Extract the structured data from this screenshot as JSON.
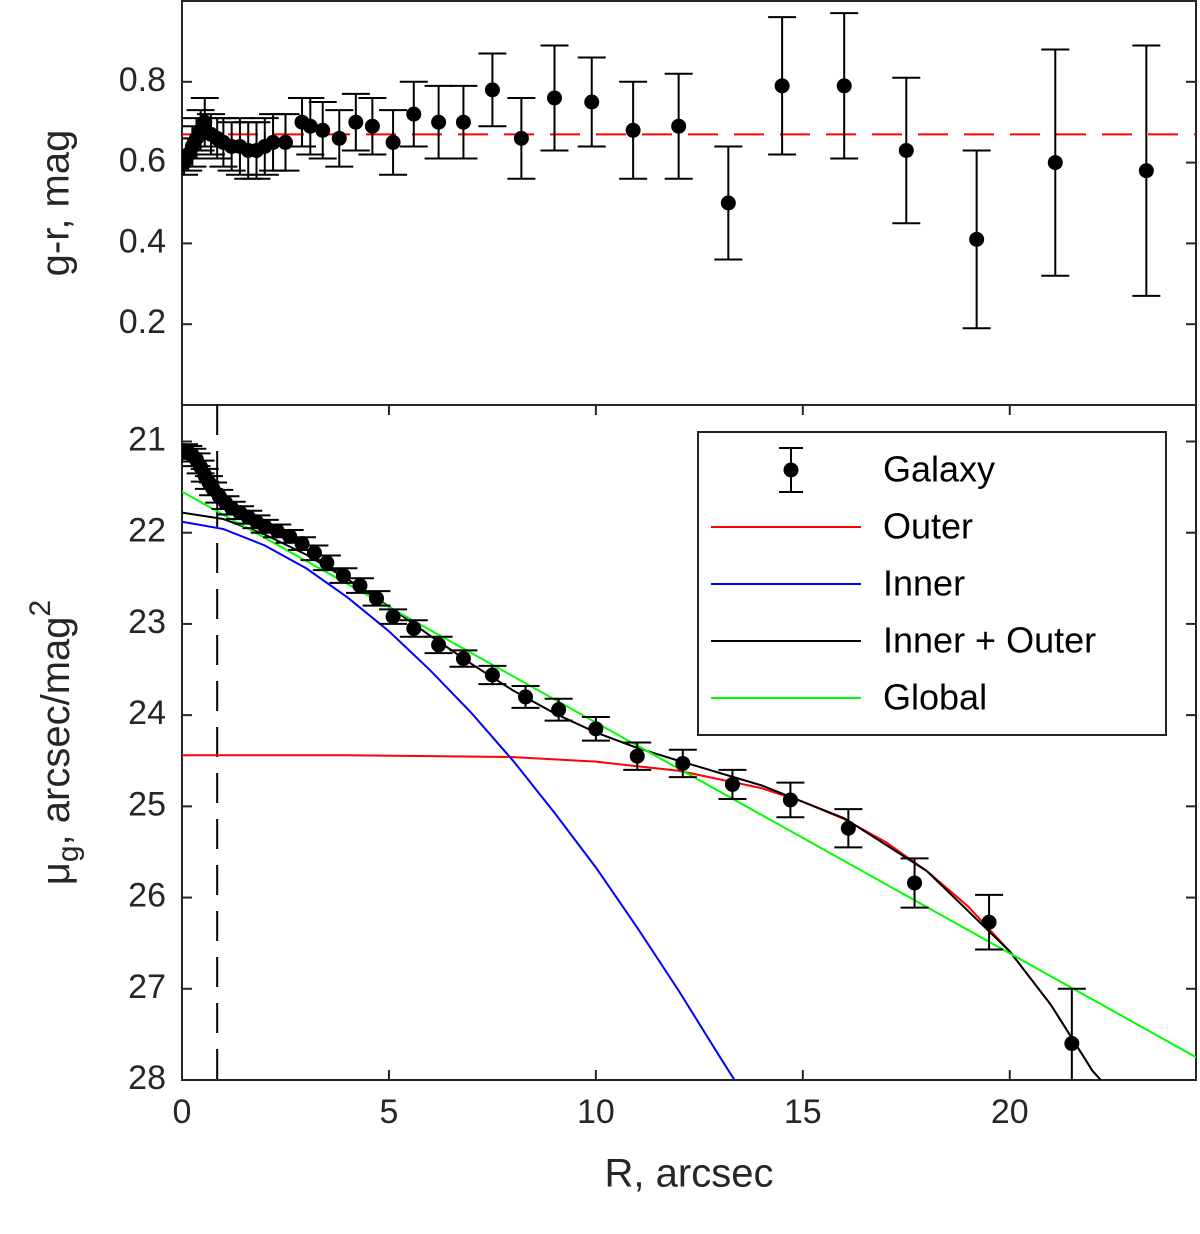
{
  "chart_data": [
    {
      "type": "scatter",
      "ylabel": "g-r, mag",
      "xlim": [
        0,
        24.5
      ],
      "ylim": [
        0,
        1
      ],
      "yticks": [
        0.2,
        0.4,
        0.6,
        0.8
      ],
      "hline": {
        "y": 0.67,
        "color": "#ff0000",
        "style": "dashed"
      },
      "series": [
        {
          "kind": "errorbar",
          "color": "#000000",
          "x": [
            0.05,
            0.15,
            0.25,
            0.35,
            0.45,
            0.55,
            0.7,
            0.85,
            1.0,
            1.2,
            1.4,
            1.6,
            1.8,
            2.0,
            2.2,
            2.5,
            2.9,
            3.1,
            3.4,
            3.8,
            4.2,
            4.6,
            5.1,
            5.6,
            6.2,
            6.8,
            7.5,
            8.2,
            9.0,
            9.9,
            10.9,
            12.0,
            13.2,
            14.5,
            16.0,
            17.5,
            19.2,
            21.1,
            23.3
          ],
          "values": [
            0.6,
            0.62,
            0.64,
            0.66,
            0.68,
            0.7,
            0.67,
            0.66,
            0.65,
            0.64,
            0.64,
            0.63,
            0.63,
            0.64,
            0.65,
            0.65,
            0.7,
            0.69,
            0.68,
            0.66,
            0.7,
            0.69,
            0.65,
            0.72,
            0.7,
            0.7,
            0.78,
            0.66,
            0.76,
            0.75,
            0.68,
            0.69,
            0.5,
            0.79,
            0.79,
            0.63,
            0.41,
            0.6,
            0.58
          ],
          "errors": [
            0.03,
            0.04,
            0.05,
            0.05,
            0.05,
            0.06,
            0.05,
            0.05,
            0.06,
            0.06,
            0.07,
            0.07,
            0.07,
            0.07,
            0.07,
            0.07,
            0.06,
            0.07,
            0.07,
            0.07,
            0.07,
            0.07,
            0.08,
            0.08,
            0.09,
            0.09,
            0.09,
            0.1,
            0.13,
            0.11,
            0.12,
            0.13,
            0.14,
            0.17,
            0.18,
            0.18,
            0.22,
            0.28,
            0.31
          ]
        }
      ]
    },
    {
      "type": "line",
      "xlabel": "R, arcsec",
      "ylabel": {
        "base": "μ",
        "sub": "g",
        "rest": ", arcsec/mag",
        "sup": "2"
      },
      "xlim": [
        0,
        24.5
      ],
      "xticks": [
        0,
        5,
        10,
        15,
        20
      ],
      "ylim": [
        20.6,
        28
      ],
      "yticks": [
        21,
        22,
        23,
        24,
        25,
        26,
        27,
        28
      ],
      "y_reversed": true,
      "vline": {
        "x": 0.85,
        "color": "#000000",
        "style": "dashed"
      },
      "legend": "northeast",
      "series": [
        {
          "name": "Galaxy",
          "kind": "errorbar",
          "color": "#000000",
          "x": [
            0.05,
            0.15,
            0.25,
            0.35,
            0.45,
            0.55,
            0.65,
            0.75,
            0.9,
            1.05,
            1.2,
            1.4,
            1.6,
            1.8,
            2.0,
            2.3,
            2.6,
            2.9,
            3.2,
            3.5,
            3.9,
            4.3,
            4.7,
            5.1,
            5.6,
            6.2,
            6.8,
            7.5,
            8.3,
            9.1,
            10.0,
            11.0,
            12.1,
            13.3,
            14.7,
            16.1,
            17.7,
            19.5,
            21.5
          ],
          "values": [
            21.1,
            21.12,
            21.15,
            21.2,
            21.28,
            21.37,
            21.45,
            21.52,
            21.6,
            21.67,
            21.73,
            21.78,
            21.83,
            21.88,
            21.93,
            21.98,
            22.04,
            22.12,
            22.22,
            22.33,
            22.47,
            22.58,
            22.72,
            22.92,
            23.05,
            23.23,
            23.38,
            23.56,
            23.8,
            23.94,
            24.15,
            24.45,
            24.53,
            24.76,
            24.93,
            25.24,
            25.84,
            26.27,
            27.6
          ],
          "errors": [
            0.07,
            0.07,
            0.07,
            0.07,
            0.07,
            0.07,
            0.07,
            0.07,
            0.07,
            0.07,
            0.07,
            0.07,
            0.07,
            0.07,
            0.07,
            0.07,
            0.07,
            0.07,
            0.08,
            0.08,
            0.08,
            0.08,
            0.08,
            0.08,
            0.09,
            0.09,
            0.09,
            0.1,
            0.12,
            0.12,
            0.13,
            0.15,
            0.15,
            0.16,
            0.19,
            0.21,
            0.27,
            0.3,
            0.6
          ]
        },
        {
          "name": "Outer",
          "kind": "line",
          "color": "#ff0000",
          "x": [
            0,
            2,
            4,
            6,
            8,
            10,
            12,
            14,
            15,
            16,
            17,
            18,
            19,
            20,
            21,
            22,
            22.2
          ],
          "values": [
            24.44,
            24.44,
            24.44,
            24.45,
            24.46,
            24.51,
            24.61,
            24.8,
            24.95,
            25.14,
            25.39,
            25.71,
            26.1,
            26.59,
            27.18,
            27.9,
            28.0
          ]
        },
        {
          "name": "Inner",
          "kind": "line",
          "color": "#0000ff",
          "x": [
            0,
            1,
            2,
            3,
            4,
            5,
            6,
            7,
            8,
            9,
            10,
            11,
            12,
            13,
            13.35
          ],
          "values": [
            21.88,
            21.96,
            22.14,
            22.39,
            22.71,
            23.08,
            23.51,
            23.98,
            24.5,
            25.07,
            25.67,
            26.33,
            27.02,
            27.75,
            28.0
          ]
        },
        {
          "name": "Inner + Outer",
          "kind": "line",
          "color": "#000000",
          "x": [
            0,
            1,
            2,
            3,
            4,
            5,
            6,
            7,
            8,
            9,
            10,
            11,
            12,
            14,
            16,
            18,
            20,
            21,
            22,
            22.2
          ],
          "values": [
            21.78,
            21.85,
            22.02,
            22.24,
            22.51,
            22.81,
            23.13,
            23.44,
            23.73,
            23.98,
            24.19,
            24.36,
            24.5,
            24.77,
            25.13,
            25.71,
            26.59,
            27.18,
            27.9,
            28.0
          ]
        },
        {
          "name": "Global",
          "kind": "line",
          "color": "#00ff00",
          "x": [
            0,
            24.5
          ],
          "values": [
            21.55,
            27.75
          ]
        }
      ]
    }
  ]
}
